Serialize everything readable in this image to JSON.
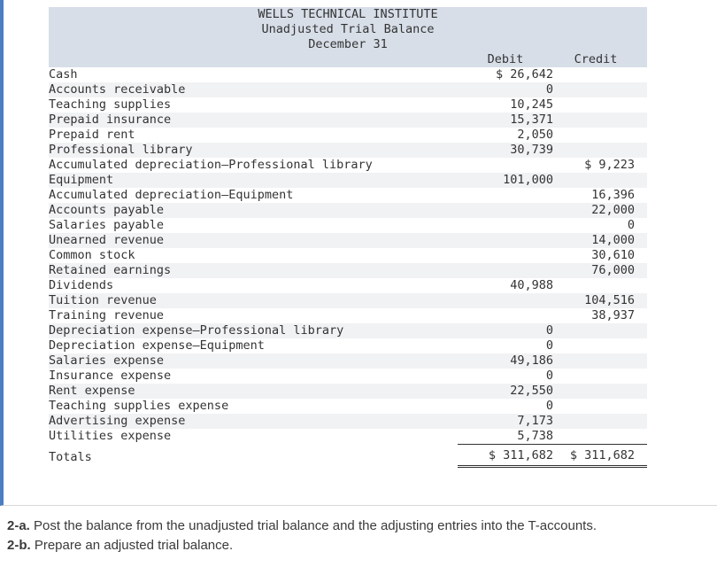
{
  "colors": {
    "accent_blue": "#4a7fc1",
    "table_header_bg": "#d7dee8",
    "row_alt_bg": "#f1f2f4"
  },
  "trial_balance": {
    "title": [
      "WELLS TECHNICAL INSTITUTE",
      "Unadjusted Trial Balance",
      "December 31"
    ],
    "column_headers": {
      "debit": "Debit",
      "credit": "Credit"
    },
    "rows": [
      {
        "account": "Cash",
        "debit": "$ 26,642",
        "credit": ""
      },
      {
        "account": "Accounts receivable",
        "debit": "0",
        "credit": ""
      },
      {
        "account": "Teaching supplies",
        "debit": "10,245",
        "credit": ""
      },
      {
        "account": "Prepaid insurance",
        "debit": "15,371",
        "credit": ""
      },
      {
        "account": "Prepaid rent",
        "debit": "2,050",
        "credit": ""
      },
      {
        "account": "Professional library",
        "debit": "30,739",
        "credit": ""
      },
      {
        "account": "Accumulated depreciation—Professional library",
        "debit": "",
        "credit": "$ 9,223"
      },
      {
        "account": "Equipment",
        "debit": "101,000",
        "credit": ""
      },
      {
        "account": "Accumulated depreciation—Equipment",
        "debit": "",
        "credit": "16,396"
      },
      {
        "account": "Accounts payable",
        "debit": "",
        "credit": "22,000"
      },
      {
        "account": "Salaries payable",
        "debit": "",
        "credit": "0"
      },
      {
        "account": "Unearned revenue",
        "debit": "",
        "credit": "14,000"
      },
      {
        "account": "Common stock",
        "debit": "",
        "credit": "30,610"
      },
      {
        "account": "Retained earnings",
        "debit": "",
        "credit": "76,000"
      },
      {
        "account": "Dividends",
        "debit": "40,988",
        "credit": ""
      },
      {
        "account": "Tuition revenue",
        "debit": "",
        "credit": "104,516"
      },
      {
        "account": "Training revenue",
        "debit": "",
        "credit": "38,937"
      },
      {
        "account": "Depreciation expense—Professional library",
        "debit": "0",
        "credit": ""
      },
      {
        "account": "Depreciation expense—Equipment",
        "debit": "0",
        "credit": ""
      },
      {
        "account": "Salaries expense",
        "debit": "49,186",
        "credit": ""
      },
      {
        "account": "Insurance expense",
        "debit": "0",
        "credit": ""
      },
      {
        "account": "Rent expense",
        "debit": "22,550",
        "credit": ""
      },
      {
        "account": "Teaching supplies expense",
        "debit": "0",
        "credit": ""
      },
      {
        "account": "Advertising expense",
        "debit": "7,173",
        "credit": ""
      },
      {
        "account": "Utilities expense",
        "debit": "5,738",
        "credit": ""
      }
    ],
    "totals": {
      "label": "Totals",
      "debit": "$ 311,682",
      "credit": "$ 311,682"
    }
  },
  "instructions": [
    {
      "prefix": "2-a.",
      "text": "Post the balance from the unadjusted trial balance and the adjusting entries into the T-accounts."
    },
    {
      "prefix": "2-b.",
      "text": "Prepare an adjusted trial balance."
    }
  ]
}
